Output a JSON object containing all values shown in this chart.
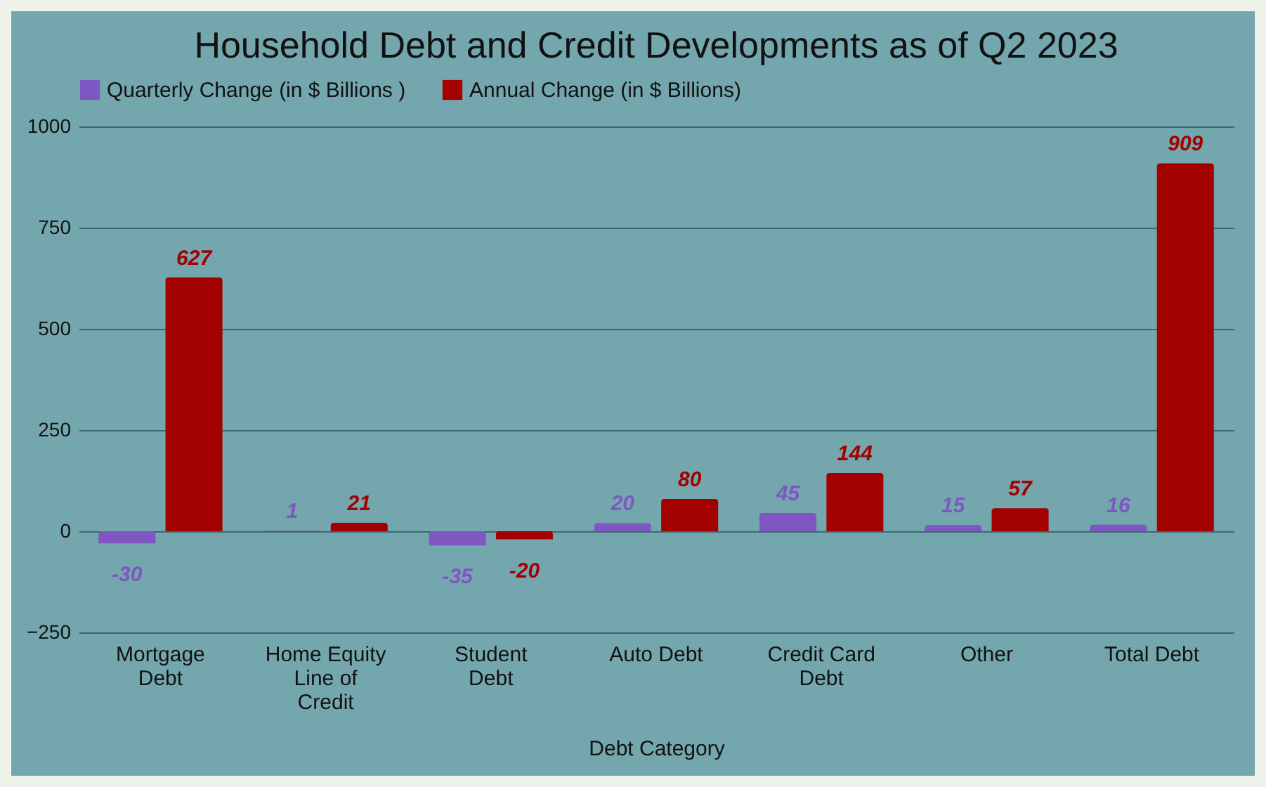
{
  "chart_data": {
    "type": "bar",
    "title": "Household Debt and Credit Developments as of Q2 2023",
    "xlabel": "Debt Category",
    "categories": [
      "Mortgage Debt",
      "Home Equity Line of Credit",
      "Student Debt",
      "Auto Debt",
      "Credit Card Debt",
      "Other",
      "Total Debt"
    ],
    "series": [
      {
        "name": "Quarterly Change (in $ Billions )",
        "color": "#7e57c2",
        "values": [
          -30,
          1,
          -35,
          20,
          45,
          15,
          16
        ]
      },
      {
        "name": "Annual Change (in $ Billions)",
        "color": "#a30000",
        "values": [
          627,
          21,
          -20,
          80,
          144,
          57,
          909
        ]
      }
    ],
    "ylim": [
      -250,
      1000
    ],
    "yticks": [
      -250,
      0,
      250,
      500,
      750,
      1000
    ],
    "grid": "y",
    "legend": "top",
    "data_labels": true
  }
}
